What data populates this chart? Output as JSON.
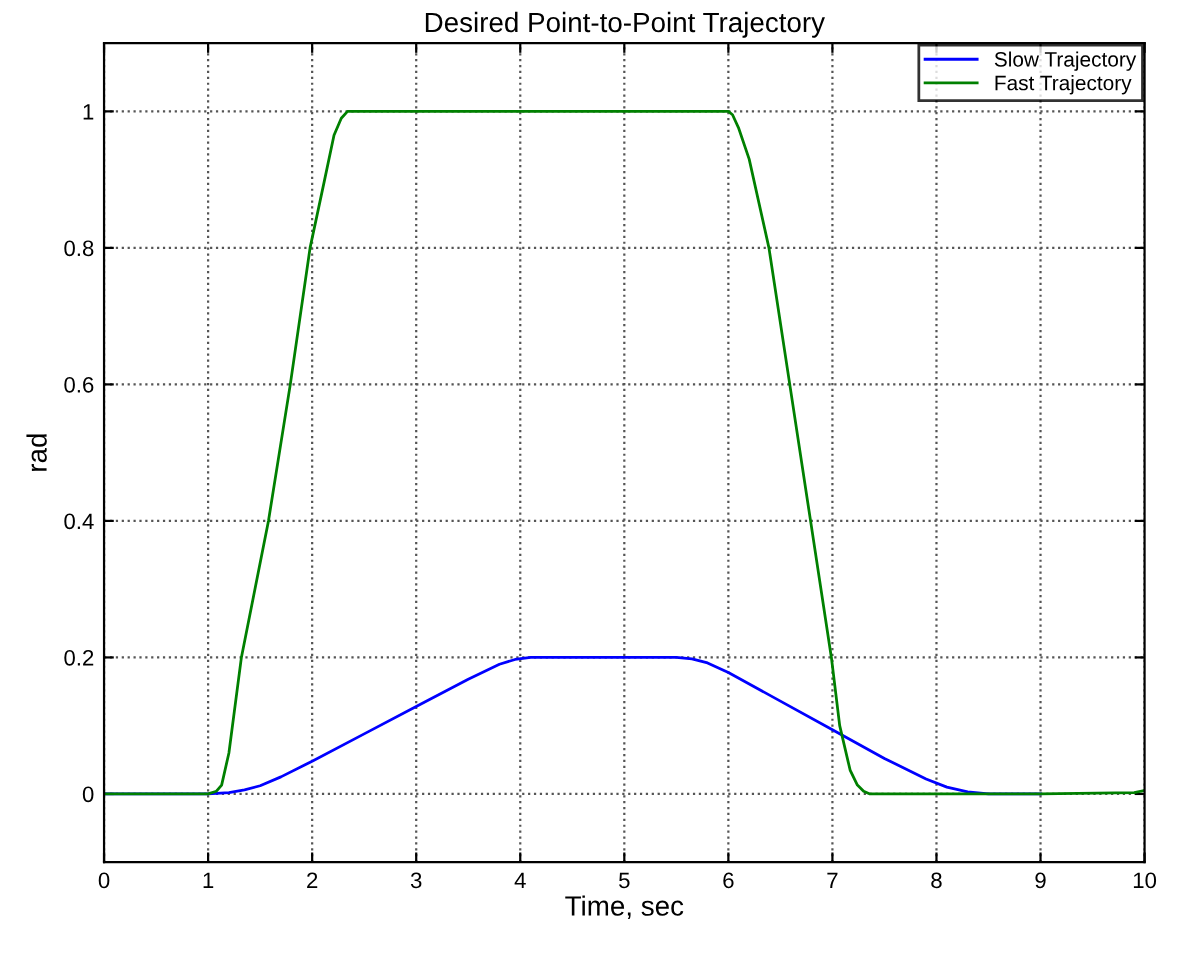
{
  "chart_data": {
    "type": "line",
    "title": "Desired Point-to-Point Trajectory",
    "xlabel": "Time, sec",
    "ylabel": "rad",
    "xlim": [
      0,
      10
    ],
    "ylim": [
      -0.1,
      1.1
    ],
    "xticks": [
      0,
      1,
      2,
      3,
      4,
      5,
      6,
      7,
      8,
      9,
      10
    ],
    "yticks": [
      0,
      0.2,
      0.4,
      0.6,
      0.8,
      1
    ],
    "grid": true,
    "legend": "top right",
    "line_style": "solid",
    "marker": "none",
    "series": [
      {
        "name": "Slow Trajectory",
        "color": "#0000ff",
        "x": [
          0,
          1.0,
          1.2,
          1.35,
          1.5,
          1.7,
          2.0,
          2.5,
          3.0,
          3.5,
          3.8,
          3.95,
          4.1,
          4.3,
          5.0,
          5.5,
          5.65,
          5.8,
          6.0,
          6.5,
          7.0,
          7.5,
          7.9,
          8.1,
          8.3,
          8.5,
          9.0
        ],
        "values": [
          0,
          0,
          0.002,
          0.006,
          0.012,
          0.025,
          0.048,
          0.088,
          0.128,
          0.168,
          0.19,
          0.197,
          0.2,
          0.2,
          0.2,
          0.2,
          0.198,
          0.192,
          0.178,
          0.136,
          0.094,
          0.052,
          0.022,
          0.01,
          0.003,
          0,
          0
        ]
      },
      {
        "name": "Fast Trajectory",
        "color": "#008000",
        "x": [
          0,
          1.0,
          1.08,
          1.13,
          1.2,
          1.32,
          1.45,
          1.58,
          1.79,
          1.98,
          2.12,
          2.21,
          2.28,
          2.34,
          3.0,
          4.0,
          5.0,
          6.0,
          6.04,
          6.1,
          6.2,
          6.39,
          6.59,
          6.79,
          6.99,
          7.07,
          7.17,
          7.24,
          7.3,
          7.36,
          8.0,
          9.0,
          9.9,
          10
        ],
        "values": [
          0,
          0,
          0.004,
          0.013,
          0.06,
          0.2,
          0.3,
          0.4,
          0.6,
          0.8,
          0.9,
          0.965,
          0.99,
          1,
          1,
          1,
          1,
          1,
          0.995,
          0.975,
          0.93,
          0.8,
          0.6,
          0.4,
          0.2,
          0.1,
          0.035,
          0.013,
          0.004,
          0,
          0,
          0,
          0.002,
          0.005
        ]
      }
    ]
  }
}
